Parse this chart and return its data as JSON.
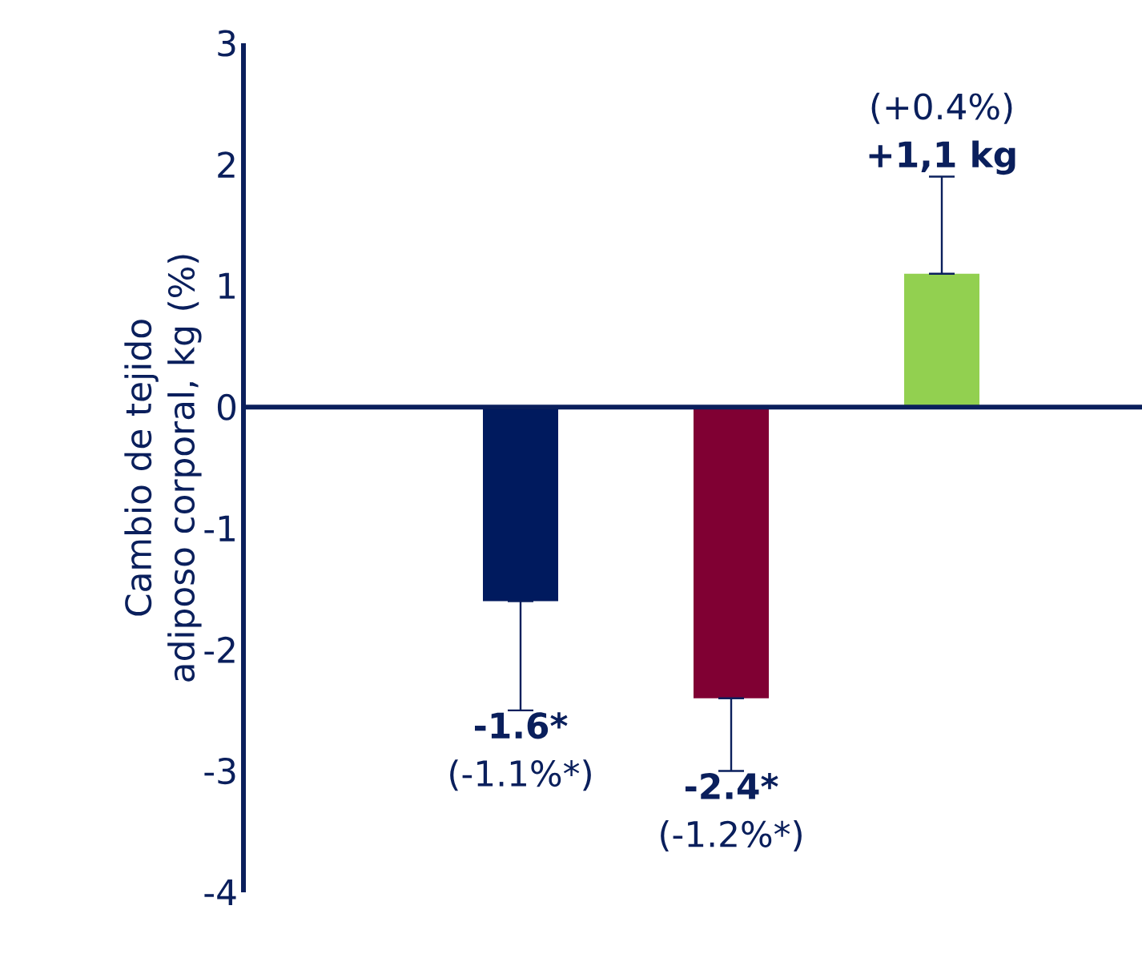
{
  "chart_data": {
    "type": "bar",
    "ylabel": "Cambio de tejido adiposo corporal, kg (%)",
    "categories": [
      null,
      null,
      null
    ],
    "values": [
      -1.6,
      -2.4,
      1.1
    ],
    "colors": [
      "#001a5e",
      "#800033",
      "#92d050"
    ],
    "errors": [
      0.9,
      0.6,
      0.8
    ],
    "value_labels": [
      "-1.6*",
      "-2.4*",
      "+1,1 kg"
    ],
    "annotations": [
      "(-1.1%*)",
      "(-1.2%*)",
      "(+0.4%)"
    ],
    "ylim": [
      -4,
      3
    ],
    "yticks": [
      -4,
      -3,
      -2,
      -1,
      0,
      1,
      2,
      3
    ]
  }
}
